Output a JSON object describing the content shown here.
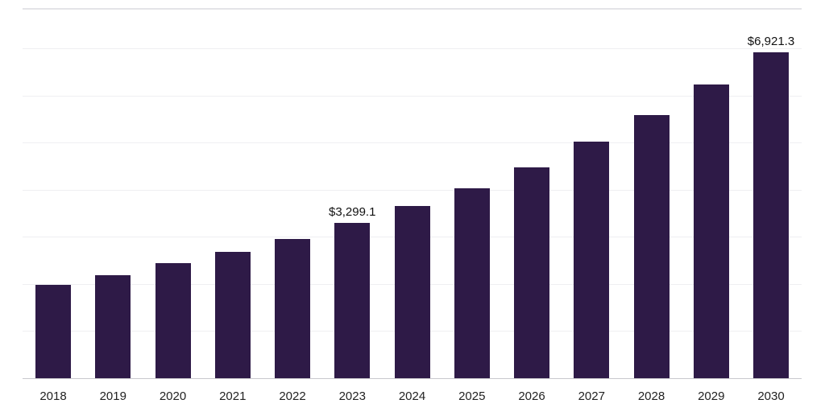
{
  "chart_data": {
    "type": "bar",
    "title": "",
    "xlabel": "",
    "ylabel": "",
    "categories": [
      "2018",
      "2019",
      "2020",
      "2021",
      "2022",
      "2023",
      "2024",
      "2025",
      "2026",
      "2027",
      "2028",
      "2029",
      "2030"
    ],
    "values": [
      1980,
      2180,
      2440,
      2680,
      2960,
      3299.1,
      3660,
      4040,
      4480,
      5030,
      5590,
      6240,
      6921.3
    ],
    "labeled_points": [
      {
        "category": "2023",
        "label": "$3,299.1"
      },
      {
        "category": "2030",
        "label": "$6,921.3"
      }
    ],
    "bar_color": "#2e1a47",
    "grid": true,
    "gridline_values": [
      1000,
      2000,
      3000,
      4000,
      5000,
      6000,
      7000
    ],
    "ylim": [
      0,
      7860
    ],
    "legend": "none",
    "gridline_color": "#efeff2",
    "axis_line_color": "#c9c9cd",
    "label_color": "#222222"
  }
}
